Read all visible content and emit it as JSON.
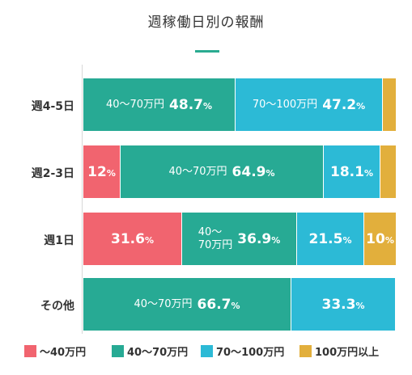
{
  "page": {
    "title": "週稼働日別の報酬"
  },
  "chart_data": {
    "type": "bar",
    "orientation": "horizontal",
    "stacked": true,
    "percent_stacked": true,
    "categories": [
      "週4-5日",
      "週2-3日",
      "週1日",
      "その他"
    ],
    "series": [
      {
        "name": "〜40万円",
        "color": "#f1646f",
        "values": [
          0,
          12,
          31.6,
          0
        ]
      },
      {
        "name": "40〜70万円",
        "color": "#27aa94",
        "values": [
          48.7,
          64.9,
          36.9,
          66.7
        ]
      },
      {
        "name": "70〜100万円",
        "color": "#2cbad6",
        "values": [
          47.2,
          18.1,
          21.5,
          33.3
        ]
      },
      {
        "name": "100万円以上",
        "color": "#e2af3c",
        "values": [
          4.1,
          5.0,
          10,
          0
        ]
      }
    ],
    "segment_labels": [
      [
        null,
        "40〜70万円",
        "70〜100万円",
        null
      ],
      [
        null,
        "40〜70万円",
        null,
        null
      ],
      [
        null,
        "40〜\n70万円",
        null,
        null
      ],
      [
        null,
        "40〜70万円",
        null,
        null
      ]
    ],
    "value_labels": [
      [
        null,
        "48.7",
        "47.2",
        null
      ],
      [
        "12",
        "64.9",
        "18.1",
        null
      ],
      [
        "31.6",
        "36.9",
        "21.5",
        "10"
      ],
      [
        null,
        "66.7",
        "33.3",
        null
      ]
    ],
    "value_suffix": "%",
    "xlim": [
      0,
      100
    ],
    "legend_position": "bottom",
    "grid": false
  }
}
